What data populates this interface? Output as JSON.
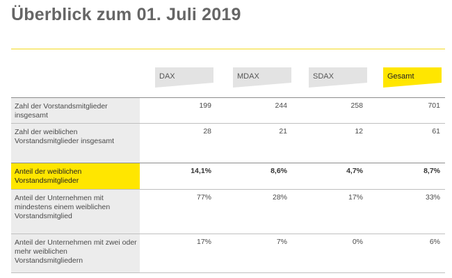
{
  "page_title": "Überblick zum 01. Juli 2019",
  "columns": [
    "DAX",
    "MDAX",
    "SDAX",
    "Gesamt"
  ],
  "colors": {
    "accent_yellow": "#ffe600",
    "label_gray": "#ececec",
    "header_gray": "#e3e3e3"
  },
  "rows": [
    {
      "label": "Zahl der Vorstandsmitglieder insgesamt",
      "values": [
        "199",
        "244",
        "258",
        "701"
      ],
      "highlight": false
    },
    {
      "label": "Zahl der weiblichen Vorstandsmitglieder insgesamt",
      "values": [
        "28",
        "21",
        "12",
        "61"
      ],
      "highlight": false
    },
    {
      "label": "Anteil der weiblichen Vorstandsmitglieder",
      "values": [
        "14,1%",
        "8,6%",
        "4,7%",
        "8,7%"
      ],
      "highlight": true
    },
    {
      "label": "Anteil der Unternehmen mit mindestens einem weiblichen Vorstandsmitglied",
      "values": [
        "77%",
        "28%",
        "17%",
        "33%"
      ],
      "highlight": false
    },
    {
      "label": "Anteil der Unternehmen mit zwei oder mehr weiblichen Vorstandsmitgliedern",
      "values": [
        "17%",
        "7%",
        "0%",
        "6%"
      ],
      "highlight": false
    }
  ]
}
